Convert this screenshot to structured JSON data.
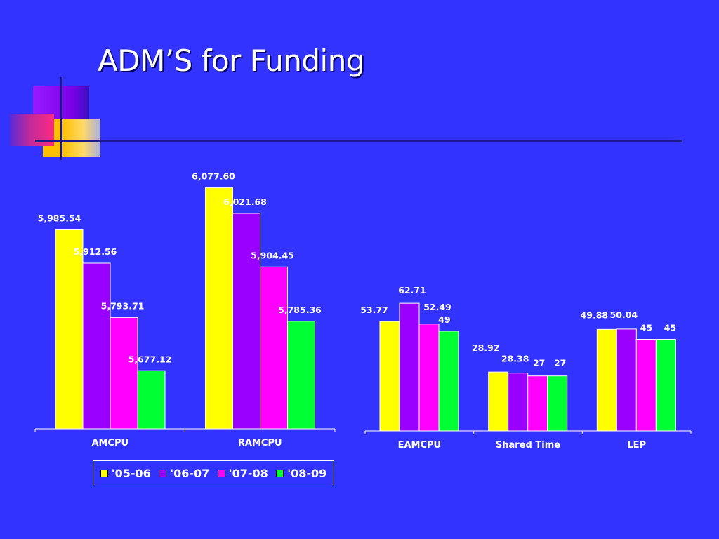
{
  "slide": {
    "title": "ADM’S for Funding"
  },
  "colors": {
    "background": "#3333ff",
    "series": [
      "#ffff00",
      "#9900ff",
      "#ff00ff",
      "#00ff33"
    ]
  },
  "legend": {
    "items": [
      "'05-06",
      "'06-07",
      "'07-08",
      "'08-09"
    ]
  },
  "chart_data": [
    {
      "type": "bar",
      "categories": [
        "AMCPU",
        "RAMCPU"
      ],
      "series": [
        {
          "name": "'05-06",
          "values": [
            5985.54,
            6077.6
          ],
          "labels": [
            "5,985.54",
            "6,077.60"
          ]
        },
        {
          "name": "'06-07",
          "values": [
            5912.56,
            6021.68
          ],
          "labels": [
            "5,912.56",
            "6,021.68"
          ]
        },
        {
          "name": "'07-08",
          "values": [
            5793.71,
            5904.45
          ],
          "labels": [
            "5,793.71",
            "5,904.45"
          ]
        },
        {
          "name": "'08-09",
          "values": [
            5677.12,
            5785.36
          ],
          "labels": [
            "5,677.12",
            "5,785.36"
          ]
        }
      ],
      "ylim": [
        5550,
        6100
      ],
      "legend": "bottom"
    },
    {
      "type": "bar",
      "categories": [
        "EAMCPU",
        "Shared Time",
        "LEP"
      ],
      "series": [
        {
          "name": "'05-06",
          "values": [
            53.77,
            28.92,
            49.88
          ],
          "labels": [
            "53.77",
            "28.92",
            "49.88"
          ]
        },
        {
          "name": "'06-07",
          "values": [
            62.71,
            28.38,
            50.04
          ],
          "labels": [
            "62.71",
            "28.38",
            "50.04"
          ]
        },
        {
          "name": "'07-08",
          "values": [
            52.49,
            27,
            45
          ],
          "labels": [
            "52.49",
            "27",
            "45"
          ]
        },
        {
          "name": "'08-09",
          "values": [
            49,
            27,
            45
          ],
          "labels": [
            "49",
            "27",
            "45"
          ]
        }
      ],
      "ylim": [
        0,
        80
      ]
    }
  ]
}
